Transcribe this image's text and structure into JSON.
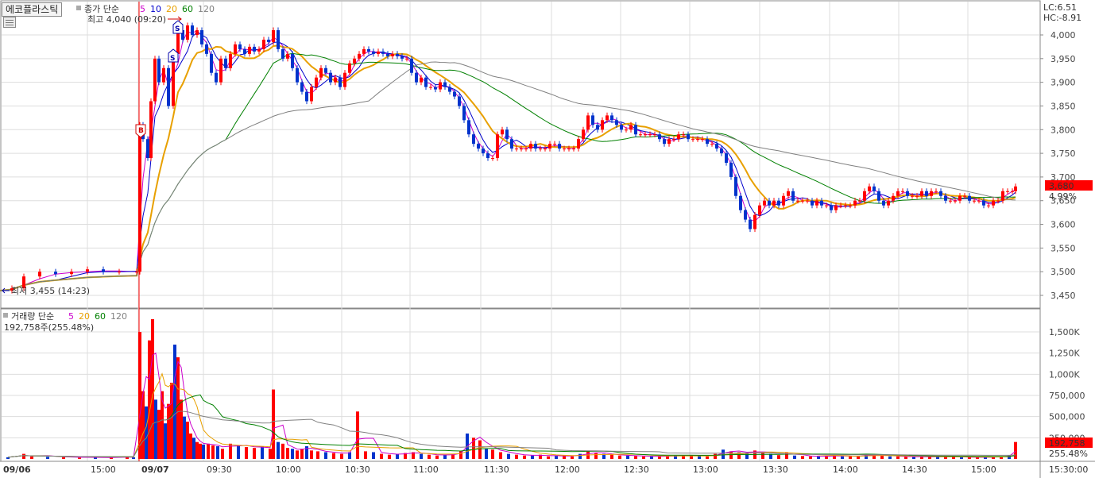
{
  "stock": {
    "name": "에코플라스틱"
  },
  "price_legend": {
    "prefix": "종가 단순",
    "periods": [
      {
        "label": "5",
        "color": "#cc00cc"
      },
      {
        "label": "10",
        "color": "#0000cc"
      },
      {
        "label": "20",
        "color": "#e8a000"
      },
      {
        "label": "60",
        "color": "#008000"
      },
      {
        "label": "120",
        "color": "#808080"
      }
    ]
  },
  "volume_legend": {
    "prefix": "거래량 단순",
    "periods": [
      {
        "label": "5",
        "color": "#cc00cc"
      },
      {
        "label": "20",
        "color": "#e8a000"
      },
      {
        "label": "60",
        "color": "#008000"
      },
      {
        "label": "120",
        "color": "#808080"
      }
    ],
    "current_text": "192,758주(255.48%)"
  },
  "annotations": {
    "high": "최고 4,040 (09:20)",
    "low": "최저 3,455 (14:23)",
    "lc": "LC:6.51",
    "hc": "HC:-8.91",
    "buy_marker": "B",
    "sell_marker": "S"
  },
  "right_tags": {
    "price": "3,680",
    "change_pct": "4.99%",
    "volume": "192,758",
    "volume_pct": "255.48%"
  },
  "colors": {
    "up": "#ff0000",
    "down": "#0033cc",
    "grid": "#dddddd",
    "session_line": "#ff0000"
  },
  "chart_data": [
    {
      "type": "candlestick",
      "y_axis_ticks": [
        "4,000",
        "3,950",
        "3,900",
        "3,850",
        "3,800",
        "3,750",
        "3,700",
        "3,650",
        "3,600",
        "3,550",
        "3,500",
        "3,450"
      ],
      "ylim": [
        3430,
        4060
      ],
      "x_ticks": [
        "09/06",
        "15:00",
        "09/07",
        "09:30",
        "10:00",
        "10:30",
        "11:00",
        "11:30",
        "12:00",
        "12:30",
        "13:00",
        "13:30",
        "14:00",
        "14:30",
        "15:00",
        "15:30:00"
      ],
      "close_series": [
        [
          0,
          3460
        ],
        [
          15,
          3465
        ],
        [
          30,
          3490
        ],
        [
          50,
          3500
        ],
        [
          70,
          3495
        ],
        [
          90,
          3500
        ],
        [
          110,
          3505
        ],
        [
          130,
          3500
        ],
        [
          150,
          3500
        ],
        [
          172,
          3500
        ],
        [
          176,
          3810
        ],
        [
          180,
          3780
        ],
        [
          186,
          3740
        ],
        [
          190,
          3860
        ],
        [
          195,
          3950
        ],
        [
          200,
          3900
        ],
        [
          206,
          3930
        ],
        [
          212,
          3850
        ],
        [
          218,
          3960
        ],
        [
          224,
          4010
        ],
        [
          230,
          3990
        ],
        [
          236,
          4020
        ],
        [
          242,
          4000
        ],
        [
          248,
          4010
        ],
        [
          254,
          3980
        ],
        [
          260,
          3960
        ],
        [
          266,
          3920
        ],
        [
          272,
          3900
        ],
        [
          278,
          3950
        ],
        [
          284,
          3930
        ],
        [
          290,
          3960
        ],
        [
          296,
          3980
        ],
        [
          302,
          3970
        ],
        [
          308,
          3960
        ],
        [
          314,
          3975
        ],
        [
          320,
          3965
        ],
        [
          326,
          3970
        ],
        [
          332,
          3990
        ],
        [
          338,
          3985
        ],
        [
          344,
          4010
        ],
        [
          350,
          3970
        ],
        [
          356,
          3950
        ],
        [
          362,
          3960
        ],
        [
          368,
          3930
        ],
        [
          374,
          3900
        ],
        [
          380,
          3880
        ],
        [
          386,
          3860
        ],
        [
          392,
          3890
        ],
        [
          398,
          3910
        ],
        [
          404,
          3930
        ],
        [
          410,
          3920
        ],
        [
          416,
          3900
        ],
        [
          422,
          3910
        ],
        [
          428,
          3890
        ],
        [
          434,
          3920
        ],
        [
          440,
          3940
        ],
        [
          446,
          3950
        ],
        [
          452,
          3960
        ],
        [
          458,
          3970
        ],
        [
          464,
          3965
        ],
        [
          470,
          3960
        ],
        [
          476,
          3965
        ],
        [
          482,
          3960
        ],
        [
          488,
          3955
        ],
        [
          494,
          3960
        ],
        [
          500,
          3955
        ],
        [
          506,
          3950
        ],
        [
          512,
          3950
        ],
        [
          518,
          3920
        ],
        [
          524,
          3900
        ],
        [
          530,
          3910
        ],
        [
          536,
          3890
        ],
        [
          542,
          3890
        ],
        [
          548,
          3885
        ],
        [
          554,
          3900
        ],
        [
          560,
          3890
        ],
        [
          566,
          3880
        ],
        [
          572,
          3870
        ],
        [
          578,
          3850
        ],
        [
          584,
          3820
        ],
        [
          590,
          3790
        ],
        [
          596,
          3770
        ],
        [
          602,
          3760
        ],
        [
          608,
          3750
        ],
        [
          614,
          3740
        ],
        [
          620,
          3740
        ],
        [
          626,
          3790
        ],
        [
          632,
          3800
        ],
        [
          638,
          3780
        ],
        [
          644,
          3760
        ],
        [
          650,
          3760
        ],
        [
          656,
          3760
        ],
        [
          662,
          3760
        ],
        [
          668,
          3770
        ],
        [
          674,
          3760
        ],
        [
          680,
          3760
        ],
        [
          686,
          3760
        ],
        [
          692,
          3770
        ],
        [
          698,
          3770
        ],
        [
          704,
          3760
        ],
        [
          710,
          3760
        ],
        [
          716,
          3760
        ],
        [
          722,
          3760
        ],
        [
          728,
          3780
        ],
        [
          734,
          3800
        ],
        [
          740,
          3830
        ],
        [
          746,
          3810
        ],
        [
          752,
          3800
        ],
        [
          758,
          3820
        ],
        [
          764,
          3830
        ],
        [
          770,
          3820
        ],
        [
          776,
          3810
        ],
        [
          782,
          3800
        ],
        [
          788,
          3800
        ],
        [
          794,
          3810
        ],
        [
          800,
          3790
        ],
        [
          806,
          3790
        ],
        [
          812,
          3790
        ],
        [
          818,
          3790
        ],
        [
          824,
          3790
        ],
        [
          830,
          3780
        ],
        [
          836,
          3770
        ],
        [
          842,
          3780
        ],
        [
          848,
          3780
        ],
        [
          854,
          3790
        ],
        [
          860,
          3790
        ],
        [
          866,
          3780
        ],
        [
          872,
          3780
        ],
        [
          878,
          3780
        ],
        [
          884,
          3780
        ],
        [
          890,
          3770
        ],
        [
          896,
          3770
        ],
        [
          902,
          3760
        ],
        [
          908,
          3750
        ],
        [
          914,
          3730
        ],
        [
          920,
          3700
        ],
        [
          926,
          3660
        ],
        [
          932,
          3630
        ],
        [
          938,
          3610
        ],
        [
          944,
          3590
        ],
        [
          950,
          3620
        ],
        [
          956,
          3640
        ],
        [
          962,
          3650
        ],
        [
          968,
          3640
        ],
        [
          974,
          3650
        ],
        [
          980,
          3640
        ],
        [
          986,
          3660
        ],
        [
          992,
          3670
        ],
        [
          998,
          3650
        ],
        [
          1004,
          3650
        ],
        [
          1010,
          3650
        ],
        [
          1016,
          3650
        ],
        [
          1022,
          3640
        ],
        [
          1028,
          3650
        ],
        [
          1034,
          3640
        ],
        [
          1040,
          3640
        ],
        [
          1046,
          3630
        ],
        [
          1052,
          3640
        ],
        [
          1058,
          3640
        ],
        [
          1064,
          3640
        ],
        [
          1070,
          3640
        ],
        [
          1076,
          3650
        ],
        [
          1082,
          3650
        ],
        [
          1088,
          3670
        ],
        [
          1094,
          3680
        ],
        [
          1100,
          3670
        ],
        [
          1106,
          3650
        ],
        [
          1112,
          3640
        ],
        [
          1118,
          3650
        ],
        [
          1124,
          3660
        ],
        [
          1130,
          3670
        ],
        [
          1136,
          3670
        ],
        [
          1142,
          3660
        ],
        [
          1148,
          3660
        ],
        [
          1154,
          3660
        ],
        [
          1160,
          3670
        ],
        [
          1166,
          3660
        ],
        [
          1172,
          3670
        ],
        [
          1178,
          3670
        ],
        [
          1184,
          3660
        ],
        [
          1190,
          3650
        ],
        [
          1196,
          3650
        ],
        [
          1202,
          3650
        ],
        [
          1208,
          3660
        ],
        [
          1214,
          3660
        ],
        [
          1220,
          3650
        ],
        [
          1226,
          3650
        ],
        [
          1232,
          3650
        ],
        [
          1238,
          3640
        ],
        [
          1244,
          3640
        ],
        [
          1250,
          3650
        ],
        [
          1256,
          3650
        ],
        [
          1262,
          3670
        ],
        [
          1268,
          3670
        ],
        [
          1274,
          3670
        ],
        [
          1278,
          3680
        ]
      ]
    },
    {
      "type": "bar",
      "y_axis_ticks": [
        "1,500K",
        "1,250K",
        "1,000K",
        "750,000",
        "500,000",
        "250,000"
      ],
      "ylim": [
        0,
        1800000
      ],
      "volume_series": [
        [
          10,
          20000
        ],
        [
          30,
          60000
        ],
        [
          40,
          30000
        ],
        [
          60,
          25000
        ],
        [
          80,
          20000
        ],
        [
          100,
          15000
        ],
        [
          120,
          20000
        ],
        [
          140,
          15000
        ],
        [
          160,
          30000
        ],
        [
          168,
          20000
        ],
        [
          176,
          1500000
        ],
        [
          180,
          800000
        ],
        [
          184,
          620000
        ],
        [
          188,
          1400000
        ],
        [
          192,
          1650000
        ],
        [
          196,
          700000
        ],
        [
          200,
          580000
        ],
        [
          204,
          800000
        ],
        [
          208,
          420000
        ],
        [
          212,
          650000
        ],
        [
          216,
          900000
        ],
        [
          220,
          1350000
        ],
        [
          224,
          1200000
        ],
        [
          228,
          700000
        ],
        [
          232,
          500000
        ],
        [
          236,
          440000
        ],
        [
          240,
          300000
        ],
        [
          244,
          250000
        ],
        [
          248,
          200000
        ],
        [
          252,
          180000
        ],
        [
          256,
          170000
        ],
        [
          262,
          180000
        ],
        [
          268,
          160000
        ],
        [
          274,
          150000
        ],
        [
          280,
          120000
        ],
        [
          290,
          180000
        ],
        [
          300,
          160000
        ],
        [
          310,
          140000
        ],
        [
          320,
          130000
        ],
        [
          330,
          150000
        ],
        [
          340,
          120000
        ],
        [
          344,
          820000
        ],
        [
          350,
          200000
        ],
        [
          356,
          180000
        ],
        [
          362,
          130000
        ],
        [
          368,
          120000
        ],
        [
          374,
          100000
        ],
        [
          380,
          120000
        ],
        [
          386,
          150000
        ],
        [
          392,
          100000
        ],
        [
          400,
          90000
        ],
        [
          410,
          80000
        ],
        [
          420,
          70000
        ],
        [
          430,
          60000
        ],
        [
          440,
          80000
        ],
        [
          450,
          560000
        ],
        [
          460,
          90000
        ],
        [
          470,
          80000
        ],
        [
          480,
          60000
        ],
        [
          490,
          50000
        ],
        [
          500,
          60000
        ],
        [
          510,
          70000
        ],
        [
          520,
          80000
        ],
        [
          530,
          60000
        ],
        [
          540,
          50000
        ],
        [
          550,
          40000
        ],
        [
          560,
          50000
        ],
        [
          570,
          60000
        ],
        [
          580,
          90000
        ],
        [
          588,
          300000
        ],
        [
          596,
          250000
        ],
        [
          604,
          220000
        ],
        [
          612,
          120000
        ],
        [
          620,
          110000
        ],
        [
          630,
          80000
        ],
        [
          640,
          60000
        ],
        [
          650,
          50000
        ],
        [
          660,
          40000
        ],
        [
          670,
          40000
        ],
        [
          680,
          50000
        ],
        [
          690,
          30000
        ],
        [
          700,
          35000
        ],
        [
          710,
          40000
        ],
        [
          720,
          30000
        ],
        [
          730,
          60000
        ],
        [
          740,
          90000
        ],
        [
          750,
          70000
        ],
        [
          760,
          60000
        ],
        [
          770,
          50000
        ],
        [
          780,
          40000
        ],
        [
          790,
          40000
        ],
        [
          800,
          35000
        ],
        [
          810,
          30000
        ],
        [
          820,
          30000
        ],
        [
          830,
          30000
        ],
        [
          840,
          35000
        ],
        [
          850,
          40000
        ],
        [
          860,
          40000
        ],
        [
          870,
          45000
        ],
        [
          880,
          35000
        ],
        [
          890,
          30000
        ],
        [
          900,
          60000
        ],
        [
          910,
          110000
        ],
        [
          920,
          90000
        ],
        [
          930,
          80000
        ],
        [
          940,
          70000
        ],
        [
          950,
          100000
        ],
        [
          960,
          80000
        ],
        [
          970,
          60000
        ],
        [
          980,
          45000
        ],
        [
          990,
          80000
        ],
        [
          1000,
          40000
        ],
        [
          1010,
          35000
        ],
        [
          1020,
          30000
        ],
        [
          1030,
          30000
        ],
        [
          1040,
          35000
        ],
        [
          1050,
          40000
        ],
        [
          1060,
          30000
        ],
        [
          1070,
          30000
        ],
        [
          1080,
          30000
        ],
        [
          1090,
          60000
        ],
        [
          1100,
          50000
        ],
        [
          1110,
          40000
        ],
        [
          1120,
          30000
        ],
        [
          1130,
          30000
        ],
        [
          1140,
          25000
        ],
        [
          1150,
          25000
        ],
        [
          1160,
          30000
        ],
        [
          1170,
          25000
        ],
        [
          1180,
          25000
        ],
        [
          1190,
          30000
        ],
        [
          1200,
          25000
        ],
        [
          1210,
          20000
        ],
        [
          1220,
          20000
        ],
        [
          1230,
          20000
        ],
        [
          1240,
          20000
        ],
        [
          1250,
          25000
        ],
        [
          1260,
          30000
        ],
        [
          1270,
          40000
        ],
        [
          1278,
          200000
        ]
      ]
    }
  ]
}
